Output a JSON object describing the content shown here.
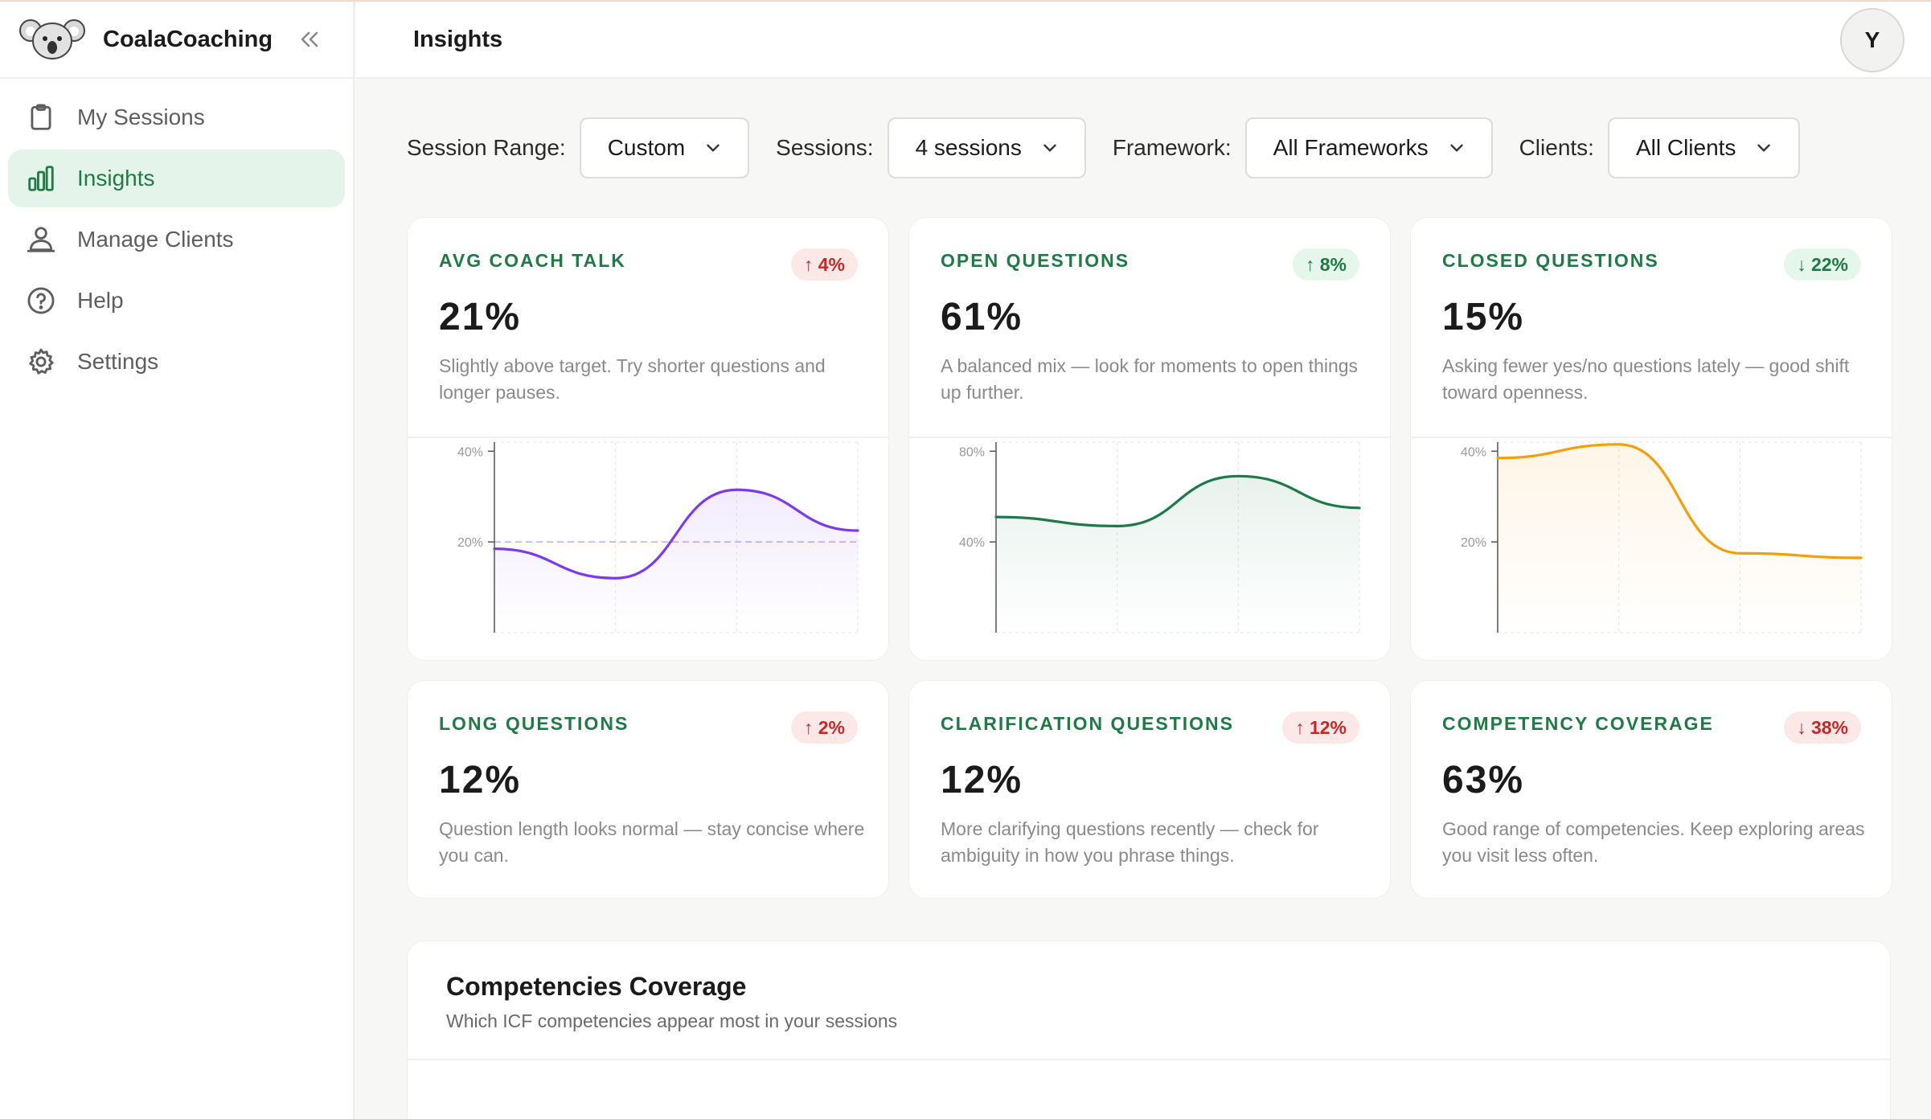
{
  "brand": {
    "name": "CoalaCoaching"
  },
  "sidebar": {
    "items": [
      {
        "label": "My Sessions",
        "icon": "clipboard-icon",
        "active": false
      },
      {
        "label": "Insights",
        "icon": "bar-chart-icon",
        "active": true
      },
      {
        "label": "Manage Clients",
        "icon": "user-icon",
        "active": false
      },
      {
        "label": "Help",
        "icon": "help-icon",
        "active": false
      },
      {
        "label": "Settings",
        "icon": "gear-icon",
        "active": false
      }
    ]
  },
  "header": {
    "title": "Insights",
    "avatar_initial": "Y"
  },
  "filters": [
    {
      "label": "Session Range:",
      "value": "Custom"
    },
    {
      "label": "Sessions:",
      "value": "4 sessions"
    },
    {
      "label": "Framework:",
      "value": "All Frameworks"
    },
    {
      "label": "Clients:",
      "value": "All Clients"
    }
  ],
  "colors": {
    "accent_green": "#1f7a45",
    "active_bg": "#e5f4ea",
    "up_red": "#c62828",
    "purple": "#7c3aed",
    "green_line": "#1e7a4a",
    "orange": "#f59e0b"
  },
  "metrics": [
    {
      "label": "AVG COACH TALK",
      "badge": "↑ 4%",
      "badge_tone": "red",
      "value": "21%",
      "desc": "Slightly above target. Try shorter questions and longer pauses."
    },
    {
      "label": "OPEN QUESTIONS",
      "badge": "↑ 8%",
      "badge_tone": "green",
      "value": "61%",
      "desc": "A balanced mix — look for moments to open things up further."
    },
    {
      "label": "CLOSED QUESTIONS",
      "badge": "↓ 22%",
      "badge_tone": "green",
      "value": "15%",
      "desc": "Asking fewer yes/no questions lately — good shift toward openness."
    },
    {
      "label": "LONG QUESTIONS",
      "badge": "↑ 2%",
      "badge_tone": "red",
      "value": "12%",
      "desc": "Question length looks normal — stay concise where you can."
    },
    {
      "label": "CLARIFICATION QUESTIONS",
      "badge": "↑ 12%",
      "badge_tone": "red",
      "value": "12%",
      "desc": "More clarifying questions recently — check for ambiguity in how you phrase things."
    },
    {
      "label": "COMPETENCY COVERAGE",
      "badge": "↓ 38%",
      "badge_tone": "red",
      "value": "63%",
      "desc": "Good range of competencies. Keep exploring areas you visit less often."
    }
  ],
  "chart_data": [
    {
      "type": "line",
      "x": [
        1,
        2,
        3,
        4
      ],
      "values": [
        18.5,
        12,
        31.5,
        22.5
      ],
      "yticks": [
        "40%",
        "20%"
      ],
      "ylim": [
        0,
        42
      ],
      "reference_line": 20,
      "color": "#7c3aed",
      "grid": true
    },
    {
      "type": "line",
      "x": [
        1,
        2,
        3,
        4
      ],
      "values": [
        51,
        47,
        69,
        55
      ],
      "yticks": [
        "80%",
        "40%"
      ],
      "ylim": [
        0,
        84
      ],
      "color": "#1e7a4a",
      "grid": true
    },
    {
      "type": "line",
      "x": [
        1,
        2,
        3,
        4
      ],
      "values": [
        38.5,
        41.5,
        17.5,
        16.5
      ],
      "yticks": [
        "40%",
        "20%"
      ],
      "ylim": [
        0,
        42
      ],
      "color": "#f59e0b",
      "grid": true
    }
  ],
  "competencies": {
    "title": "Competencies Coverage",
    "subtitle": "Which ICF competencies appear most in your sessions"
  }
}
